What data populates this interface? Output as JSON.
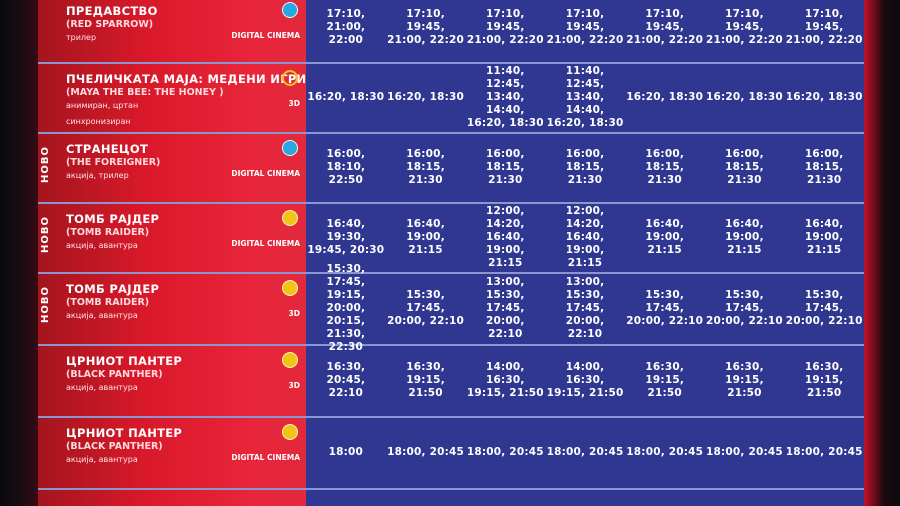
{
  "movies": [
    {
      "title": "ПРЕДАВСТВО",
      "subtitle": "(RED SPARROW)",
      "genre": "трилер",
      "format": "DIGITAL CINEMA",
      "badge": "blue",
      "novo": "",
      "times": [
        "17:10, 21:00,\n22:00",
        "17:10, 19:45,\n21:00, 22:20",
        "17:10, 19:45,\n21:00, 22:20",
        "17:10, 19:45,\n21:00, 22:20",
        "17:10, 19:45,\n21:00, 22:20",
        "17:10, 19:45,\n21:00, 22:20",
        "17:10, 19:45,\n21:00, 22:20"
      ]
    },
    {
      "title": "ПЧЕЛИЧКАТА МАЈА: МЕДЕНИ ИГРИ",
      "subtitle": "(MAYA THE BEE: THE HONEY )",
      "genre": "анимиран, цртан",
      "genre2": "синхронизиран",
      "format": "3D",
      "badge": "ring",
      "novo": "",
      "times": [
        "16:20, 18:30",
        "16:20, 18:30",
        "11:40, 12:45,\n13:40, 14:40,\n16:20, 18:30",
        "11:40, 12:45,\n13:40, 14:40,\n16:20, 18:30",
        "16:20, 18:30",
        "16:20, 18:30",
        "16:20, 18:30"
      ]
    },
    {
      "title": "СТРАНЕЦОТ",
      "subtitle": "(THE FOREIGNER)",
      "genre": "акција, трилер",
      "format": "DIGITAL CINEMA",
      "badge": "blue",
      "novo": "НОВО",
      "times": [
        "16:00, 18:10,\n22:50",
        "16:00, 18:15,\n21:30",
        "16:00, 18:15,\n21:30",
        "16:00, 18:15,\n21:30",
        "16:00, 18:15,\n21:30",
        "16:00, 18:15,\n21:30",
        "16:00, 18:15,\n21:30"
      ]
    },
    {
      "title": "ТОМБ РАЈДЕР",
      "subtitle": "(TOMB RAIDER)",
      "genre": "акција, авантура",
      "format": "DIGITAL CINEMA",
      "badge": "yellow",
      "novo": "НОВО",
      "times": [
        "16:40, 19:30,\n19:45, 20:30",
        "16:40, 19:00,\n21:15",
        "12:00, 14:20,\n16:40, 19:00,\n21:15",
        "12:00, 14:20,\n16:40, 19:00,\n21:15",
        "16:40, 19:00,\n21:15",
        "16:40, 19:00,\n21:15",
        "16:40, 19:00,\n21:15"
      ]
    },
    {
      "title": "ТОМБ РАЈДЕР",
      "subtitle": "(TOMB RAIDER)",
      "genre": "акција, авантура",
      "format": "3D",
      "badge": "yellow",
      "novo": "НОВО",
      "times": [
        "15:30, 17:45,\n19:15, 20:00,\n20:15, 21:30,\n22:30",
        "15:30, 17:45,\n20:00, 22:10",
        "13:00, 15:30,\n17:45, 20:00,\n22:10",
        "13:00, 15:30,\n17:45, 20:00,\n22:10",
        "15:30, 17:45,\n20:00, 22:10",
        "15:30, 17:45,\n20:00, 22:10",
        "15:30, 17:45,\n20:00, 22:10"
      ]
    },
    {
      "title": "ЦРНИОТ ПАНТЕР",
      "subtitle": "(BLACK PANTHER)",
      "genre": "акција, авантура",
      "format": "3D",
      "badge": "yellow",
      "novo": "",
      "times": [
        "16:30, 20:45,\n22:10",
        "16:30, 19:15,\n21:50",
        "14:00, 16:30,\n19:15, 21:50",
        "14:00, 16:30,\n19:15, 21:50",
        "16:30, 19:15,\n21:50",
        "16:30, 19:15,\n21:50",
        "16:30, 19:15,\n21:50"
      ]
    },
    {
      "title": "ЦРНИОТ ПАНТЕР",
      "subtitle": "(BLACK PANTHER)",
      "genre": "акција, авантура",
      "format": "DIGITAL CINEMA",
      "badge": "yellow",
      "novo": "",
      "times": [
        "18:00",
        "18:00, 20:45",
        "18:00, 20:45",
        "18:00, 20:45",
        "18:00, 20:45",
        "18:00, 20:45",
        "18:00, 20:45"
      ]
    }
  ]
}
